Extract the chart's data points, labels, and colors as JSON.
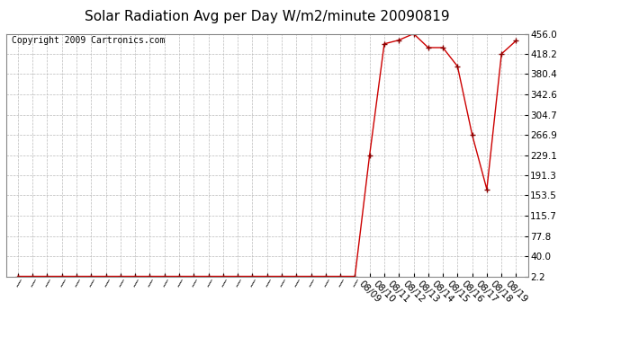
{
  "title": "Solar Radiation Avg per Day W/m2/minute 20090819",
  "copyright": "Copyright 2009 Cartronics.com",
  "yticks": [
    2.2,
    40.0,
    77.8,
    115.7,
    153.5,
    191.3,
    229.1,
    266.9,
    304.7,
    342.6,
    380.4,
    418.2,
    456.0
  ],
  "ymin": 2.2,
  "ymax": 456.0,
  "early_count": 24,
  "late_labels": [
    "08/09",
    "08/10",
    "08/11",
    "08/12",
    "08/13",
    "08/14",
    "08/15",
    "08/16",
    "08/17",
    "08/18",
    "08/19"
  ],
  "y_vals": [
    2.2,
    2.2,
    2.2,
    2.2,
    2.2,
    2.2,
    2.2,
    2.2,
    2.2,
    2.2,
    2.2,
    2.2,
    2.2,
    2.2,
    2.2,
    2.2,
    2.2,
    2.2,
    2.2,
    2.2,
    2.2,
    2.2,
    2.2,
    2.2,
    229.1,
    437.0,
    444.0,
    456.0,
    430.0,
    430.0,
    395.0,
    266.9,
    165.0,
    418.2,
    443.0
  ],
  "line_color": "#cc0000",
  "marker_color": "#880000",
  "bg_color": "#ffffff",
  "grid_color": "#bbbbbb",
  "title_fontsize": 11,
  "tick_fontsize": 7.5,
  "copyright_fontsize": 7
}
